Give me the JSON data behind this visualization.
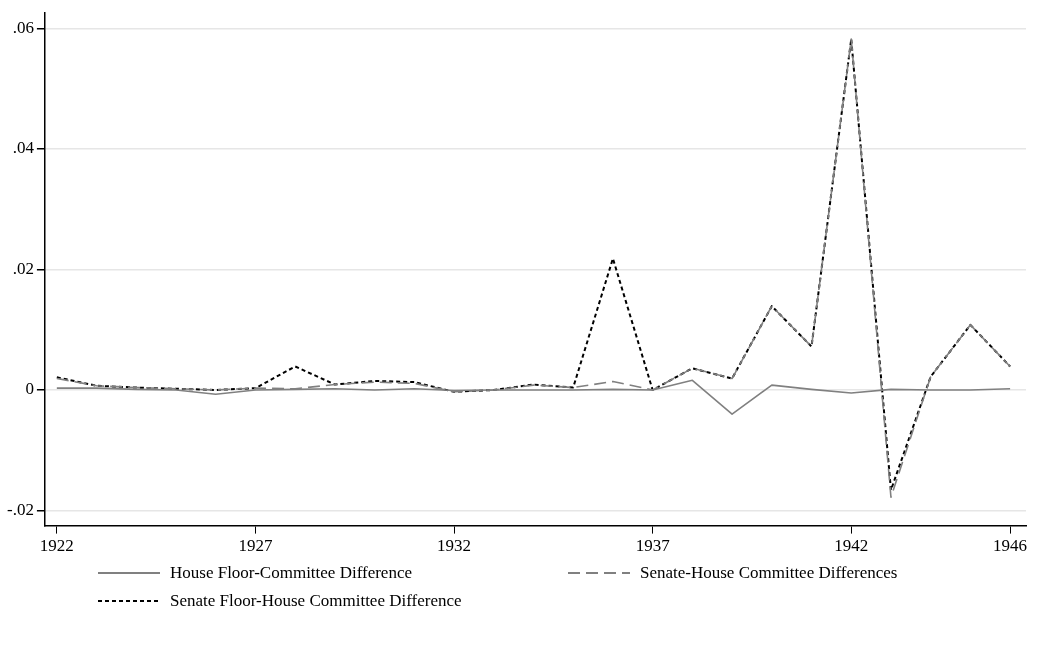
{
  "chart_data": {
    "type": "line",
    "x": [
      1922,
      1923,
      1924,
      1925,
      1926,
      1927,
      1928,
      1929,
      1930,
      1931,
      1932,
      1933,
      1934,
      1935,
      1936,
      1937,
      1938,
      1939,
      1940,
      1941,
      1942,
      1943,
      1944,
      1945,
      1946
    ],
    "series": [
      {
        "name": "House Floor-Committee Difference",
        "color": "#808080",
        "line_style": "solid",
        "values": [
          0.0003,
          0.0003,
          0.0001,
          0,
          -0.0007,
          0,
          0.0001,
          0.0002,
          0,
          0.0002,
          -0.0001,
          0,
          0,
          0,
          0.0001,
          0,
          0.0016,
          -0.004,
          0.0008,
          0.0001,
          -0.0005,
          0.0001,
          0,
          0,
          0.0002
        ]
      },
      {
        "name": "Senate-House Committee Differences",
        "color": "#808080",
        "line_style": "dashed",
        "values": [
          0.0019,
          0.0007,
          0.0004,
          0.0002,
          0,
          0.0003,
          0.0002,
          0.0009,
          0.0013,
          0.0011,
          -0.0003,
          0,
          0.0008,
          0.0004,
          0.0014,
          0,
          0.0036,
          0.0019,
          0.0139,
          0.0072,
          0.0582,
          -0.0178,
          0.0022,
          0.0108,
          0.0039
        ]
      },
      {
        "name": "Senate Floor-House Committee Difference",
        "color": "#000000",
        "line_style": "dotted",
        "values": [
          0.0021,
          0.0007,
          0.0004,
          0.0002,
          0,
          0.0003,
          0.0039,
          0.0009,
          0.0015,
          0.0013,
          -0.0003,
          0,
          0.0009,
          0.0004,
          0.0218,
          0,
          0.0036,
          0.0019,
          0.0139,
          0.0072,
          0.0582,
          -0.0166,
          0.0022,
          0.0108,
          0.0039
        ]
      }
    ],
    "xlim": [
      1921.7,
      1946.4
    ],
    "xticks": [
      1922,
      1927,
      1932,
      1937,
      1942,
      1946
    ],
    "ylim": [
      -0.0225,
      0.0625
    ],
    "yticks": [
      {
        "value": -0.02,
        "label": "-.02"
      },
      {
        "value": 0,
        "label": "0"
      },
      {
        "value": 0.02,
        "label": ".02"
      },
      {
        "value": 0.04,
        "label": ".04"
      },
      {
        "value": 0.06,
        "label": ".06"
      }
    ],
    "grid": "y",
    "legend": "bottom",
    "marker": "none"
  }
}
